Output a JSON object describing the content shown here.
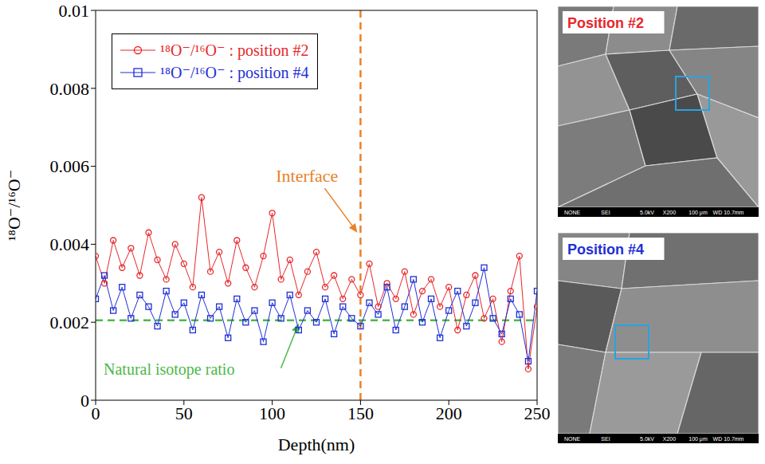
{
  "chart_data": {
    "type": "line",
    "x_label": "Depth(nm)",
    "y_label": "¹⁸O⁻/¹⁶O⁻",
    "xlim": [
      0,
      250
    ],
    "xticks": [
      0,
      50,
      100,
      150,
      200,
      250
    ],
    "ylim": [
      0,
      0.01
    ],
    "yticks": [
      0,
      0.002,
      0.004,
      0.006,
      0.008,
      0.01
    ],
    "grid": false,
    "legend": "upper left",
    "x": [
      0,
      5,
      10,
      15,
      20,
      25,
      30,
      35,
      40,
      45,
      50,
      55,
      60,
      65,
      70,
      75,
      80,
      85,
      90,
      95,
      100,
      105,
      110,
      115,
      120,
      125,
      130,
      135,
      140,
      145,
      150,
      155,
      160,
      165,
      170,
      175,
      180,
      185,
      190,
      195,
      200,
      205,
      210,
      215,
      220,
      225,
      230,
      235,
      240,
      245,
      250
    ],
    "series": [
      {
        "name": "¹⁸O⁻/¹⁶O⁻ : position #2",
        "color": "#e8262a",
        "marker": "circle",
        "values": [
          0.0037,
          0.003,
          0.0041,
          0.0034,
          0.0039,
          0.0032,
          0.0043,
          0.0036,
          0.0031,
          0.004,
          0.0035,
          0.0029,
          0.0052,
          0.0033,
          0.0038,
          0.003,
          0.0041,
          0.0034,
          0.0029,
          0.0037,
          0.0048,
          0.0031,
          0.0036,
          0.0027,
          0.0033,
          0.0038,
          0.0029,
          0.0032,
          0.0026,
          0.0031,
          0.0027,
          0.0035,
          0.0024,
          0.003,
          0.0026,
          0.0033,
          0.0022,
          0.0028,
          0.0031,
          0.0024,
          0.0029,
          0.0018,
          0.0027,
          0.0032,
          0.0021,
          0.0026,
          0.0015,
          0.0028,
          0.0037,
          0.0008,
          0.0024
        ]
      },
      {
        "name": "¹⁸O⁻/¹⁶O⁻ : position #4",
        "color": "#1f2fd6",
        "marker": "square",
        "values": [
          0.0026,
          0.0032,
          0.0023,
          0.0029,
          0.0021,
          0.0027,
          0.0024,
          0.0019,
          0.0028,
          0.0022,
          0.0025,
          0.0018,
          0.0027,
          0.0021,
          0.0024,
          0.0016,
          0.0026,
          0.002,
          0.0023,
          0.0015,
          0.0025,
          0.0021,
          0.0027,
          0.0018,
          0.0023,
          0.002,
          0.0026,
          0.0017,
          0.0024,
          0.0021,
          0.0019,
          0.0025,
          0.0022,
          0.0029,
          0.0018,
          0.0024,
          0.0031,
          0.002,
          0.0026,
          0.0016,
          0.0023,
          0.0028,
          0.0019,
          0.0025,
          0.0034,
          0.0021,
          0.0017,
          0.0026,
          0.0022,
          0.001,
          0.0028
        ]
      }
    ],
    "annotations": [
      {
        "text": "Interface",
        "axis": "x",
        "value": 150,
        "color": "#e8822a"
      },
      {
        "text": "Natural isotope ratio",
        "axis": "y",
        "value": 0.00205,
        "color": "#4cb848"
      }
    ]
  },
  "images": [
    {
      "label": "Position #2",
      "color": "#e8262a",
      "info": [
        "NONE",
        "SEI",
        "5.0kV",
        "X200",
        "100 μm",
        "WD 10.7mm"
      ]
    },
    {
      "label": "Position #4",
      "color": "#1f2fd6",
      "info": [
        "NONE",
        "SEI",
        "5.0kV",
        "X200",
        "100 μm",
        "WD 10.7mm"
      ]
    }
  ]
}
